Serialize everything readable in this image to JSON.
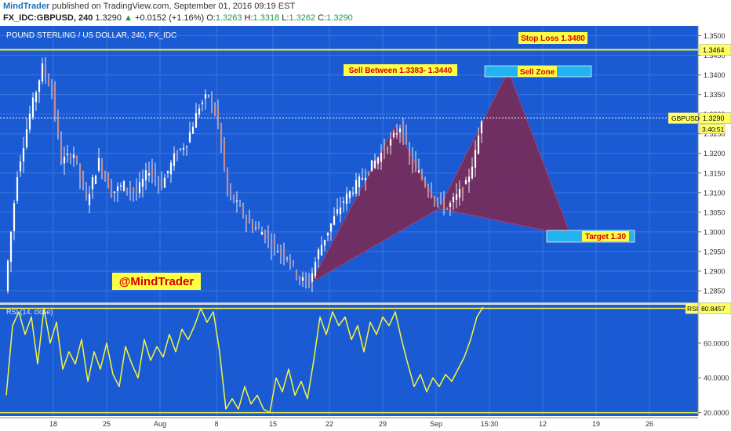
{
  "header": {
    "author": "MindTrader",
    "published": "published on TradingView.com, September 01, 2016 09:19 EST",
    "symbol": "FX_IDC:GBPUSD, 240",
    "last": "1.3290",
    "change_arrow": "▲",
    "change": "+0.0152 (+1.16%)",
    "o_label": "O:",
    "o_value": "1.3263",
    "h_label": "H:",
    "h_value": "1.3318",
    "l_label": "L:",
    "l_value": "1.3262",
    "c_label": "C:",
    "c_value": "1.3290"
  },
  "chart_data": {
    "type": "candlestick",
    "title": "POUND STERLING / US DOLLAR, 240, FX_IDC",
    "x_tick_labels": [
      "18",
      "25",
      "Aug",
      "8",
      "15",
      "22",
      "29",
      "Sep",
      "15:30",
      "12",
      "19",
      "26"
    ],
    "price_axis": {
      "ylim": [
        1.282,
        1.3525
      ],
      "tick_labels": [
        "1.3500",
        "1.3450",
        "1.3400",
        "1.3350",
        "1.3300",
        "1.3250",
        "1.3200",
        "1.3150",
        "1.3100",
        "1.3050",
        "1.3000",
        "1.2950",
        "1.2900",
        "1.2850"
      ],
      "ticks": [
        1.35,
        1.345,
        1.34,
        1.335,
        1.33,
        1.325,
        1.32,
        1.315,
        1.31,
        1.305,
        1.3,
        1.295,
        1.29,
        1.285
      ]
    },
    "price_path": [
      [
        0,
        1.285
      ],
      [
        4,
        1.315
      ],
      [
        8,
        1.33
      ],
      [
        12,
        1.342
      ],
      [
        15,
        1.336
      ],
      [
        18,
        1.318
      ],
      [
        22,
        1.32
      ],
      [
        26,
        1.308
      ],
      [
        30,
        1.318
      ],
      [
        34,
        1.31
      ],
      [
        38,
        1.312
      ],
      [
        42,
        1.31
      ],
      [
        46,
        1.316
      ],
      [
        50,
        1.312
      ],
      [
        54,
        1.319
      ],
      [
        58,
        1.323
      ],
      [
        62,
        1.332
      ],
      [
        65,
        1.335
      ],
      [
        68,
        1.328
      ],
      [
        71,
        1.31
      ],
      [
        74,
        1.307
      ],
      [
        78,
        1.302
      ],
      [
        82,
        1.3
      ],
      [
        86,
        1.296
      ],
      [
        90,
        1.294
      ],
      [
        94,
        1.288
      ],
      [
        97,
        1.287
      ],
      [
        100,
        1.295
      ],
      [
        104,
        1.302
      ],
      [
        108,
        1.308
      ],
      [
        112,
        1.312
      ],
      [
        116,
        1.316
      ],
      [
        120,
        1.32
      ],
      [
        123,
        1.323
      ],
      [
        126,
        1.327
      ],
      [
        129,
        1.319
      ],
      [
        132,
        1.315
      ],
      [
        135,
        1.311
      ],
      [
        138,
        1.308
      ],
      [
        141,
        1.306
      ],
      [
        144,
        1.309
      ],
      [
        147,
        1.312
      ],
      [
        150,
        1.32
      ],
      [
        152,
        1.329
      ]
    ],
    "x_max": 219,
    "current_price": 1.329,
    "current_label": "GBPUSD",
    "current_value": "1.3290",
    "countdown": "3:40:51",
    "level_1464": {
      "price": 1.3464,
      "label": "1.3464"
    },
    "pattern": {
      "points": [
        [
          97,
          1.287
        ],
        [
          124,
          1.327
        ],
        [
          138,
          1.306
        ],
        [
          160,
          1.341
        ],
        [
          180,
          1.299
        ]
      ],
      "color": "#7a2a55"
    },
    "annotations": {
      "stop_loss": "Stop Loss 1.3480",
      "sell_between": "Sell Between 1.3383- 1.3440",
      "sell_zone": "Sell Zone",
      "target": "Target 1.30",
      "watermark": "@MindTrader"
    },
    "rsi": {
      "label": "RSI (14, close)",
      "current_label": "RSI",
      "current_value": "80.8457",
      "ylim": [
        18,
        82
      ],
      "tick_labels": [
        "60.0000",
        "40.0000",
        "20.0000"
      ],
      "ticks": [
        60,
        40,
        20
      ],
      "upper_line": 80,
      "lower_line": 20,
      "path": [
        [
          0,
          30
        ],
        [
          2,
          70
        ],
        [
          4,
          78
        ],
        [
          6,
          65
        ],
        [
          8,
          75
        ],
        [
          10,
          48
        ],
        [
          12,
          80
        ],
        [
          14,
          60
        ],
        [
          16,
          72
        ],
        [
          18,
          45
        ],
        [
          20,
          55
        ],
        [
          22,
          48
        ],
        [
          24,
          62
        ],
        [
          26,
          38
        ],
        [
          28,
          55
        ],
        [
          30,
          45
        ],
        [
          32,
          60
        ],
        [
          34,
          42
        ],
        [
          36,
          35
        ],
        [
          38,
          58
        ],
        [
          40,
          48
        ],
        [
          42,
          40
        ],
        [
          44,
          62
        ],
        [
          46,
          50
        ],
        [
          48,
          58
        ],
        [
          50,
          52
        ],
        [
          52,
          65
        ],
        [
          54,
          55
        ],
        [
          56,
          68
        ],
        [
          58,
          62
        ],
        [
          60,
          70
        ],
        [
          62,
          80
        ],
        [
          64,
          72
        ],
        [
          66,
          78
        ],
        [
          68,
          55
        ],
        [
          70,
          22
        ],
        [
          72,
          28
        ],
        [
          74,
          22
        ],
        [
          76,
          35
        ],
        [
          78,
          25
        ],
        [
          80,
          30
        ],
        [
          82,
          22
        ],
        [
          84,
          20
        ],
        [
          86,
          40
        ],
        [
          88,
          32
        ],
        [
          90,
          45
        ],
        [
          92,
          30
        ],
        [
          94,
          38
        ],
        [
          96,
          28
        ],
        [
          98,
          50
        ],
        [
          100,
          75
        ],
        [
          102,
          65
        ],
        [
          104,
          78
        ],
        [
          106,
          70
        ],
        [
          108,
          75
        ],
        [
          110,
          62
        ],
        [
          112,
          70
        ],
        [
          114,
          55
        ],
        [
          116,
          72
        ],
        [
          118,
          65
        ],
        [
          120,
          75
        ],
        [
          122,
          70
        ],
        [
          124,
          78
        ],
        [
          126,
          62
        ],
        [
          128,
          48
        ],
        [
          130,
          35
        ],
        [
          132,
          42
        ],
        [
          134,
          32
        ],
        [
          136,
          40
        ],
        [
          138,
          35
        ],
        [
          140,
          42
        ],
        [
          142,
          38
        ],
        [
          144,
          45
        ],
        [
          146,
          52
        ],
        [
          148,
          62
        ],
        [
          150,
          75
        ],
        [
          152,
          80.8
        ]
      ]
    }
  }
}
